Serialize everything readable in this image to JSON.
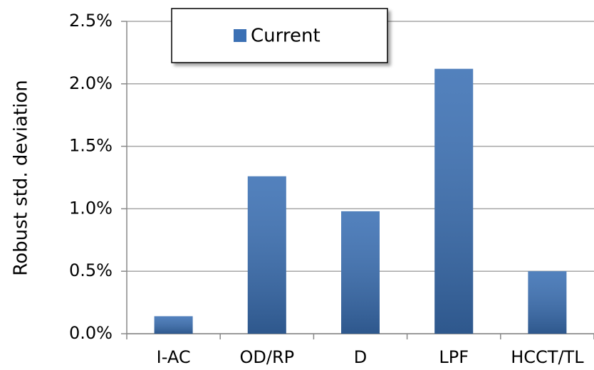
{
  "chart_data": {
    "type": "bar",
    "y_label": "Robust std. deviation",
    "categories": [
      "I-AC",
      "OD/RP",
      "D",
      "LPF",
      "HCCT/TL"
    ],
    "series": [
      {
        "name": "Current",
        "color": "#3b70b4",
        "values": [
          0.14,
          1.26,
          0.98,
          2.12,
          0.5
        ]
      }
    ],
    "ylim": [
      0,
      2.5
    ],
    "yticks": [
      {
        "value": 0,
        "label": "0.0%"
      },
      {
        "value": 0.5,
        "label": "0.5%"
      },
      {
        "value": 1,
        "label": "1.0%"
      },
      {
        "value": 1.5,
        "label": "1.5%"
      },
      {
        "value": 2,
        "label": "2.0%"
      },
      {
        "value": 2.5,
        "label": "2.5%"
      }
    ],
    "grid": true
  }
}
